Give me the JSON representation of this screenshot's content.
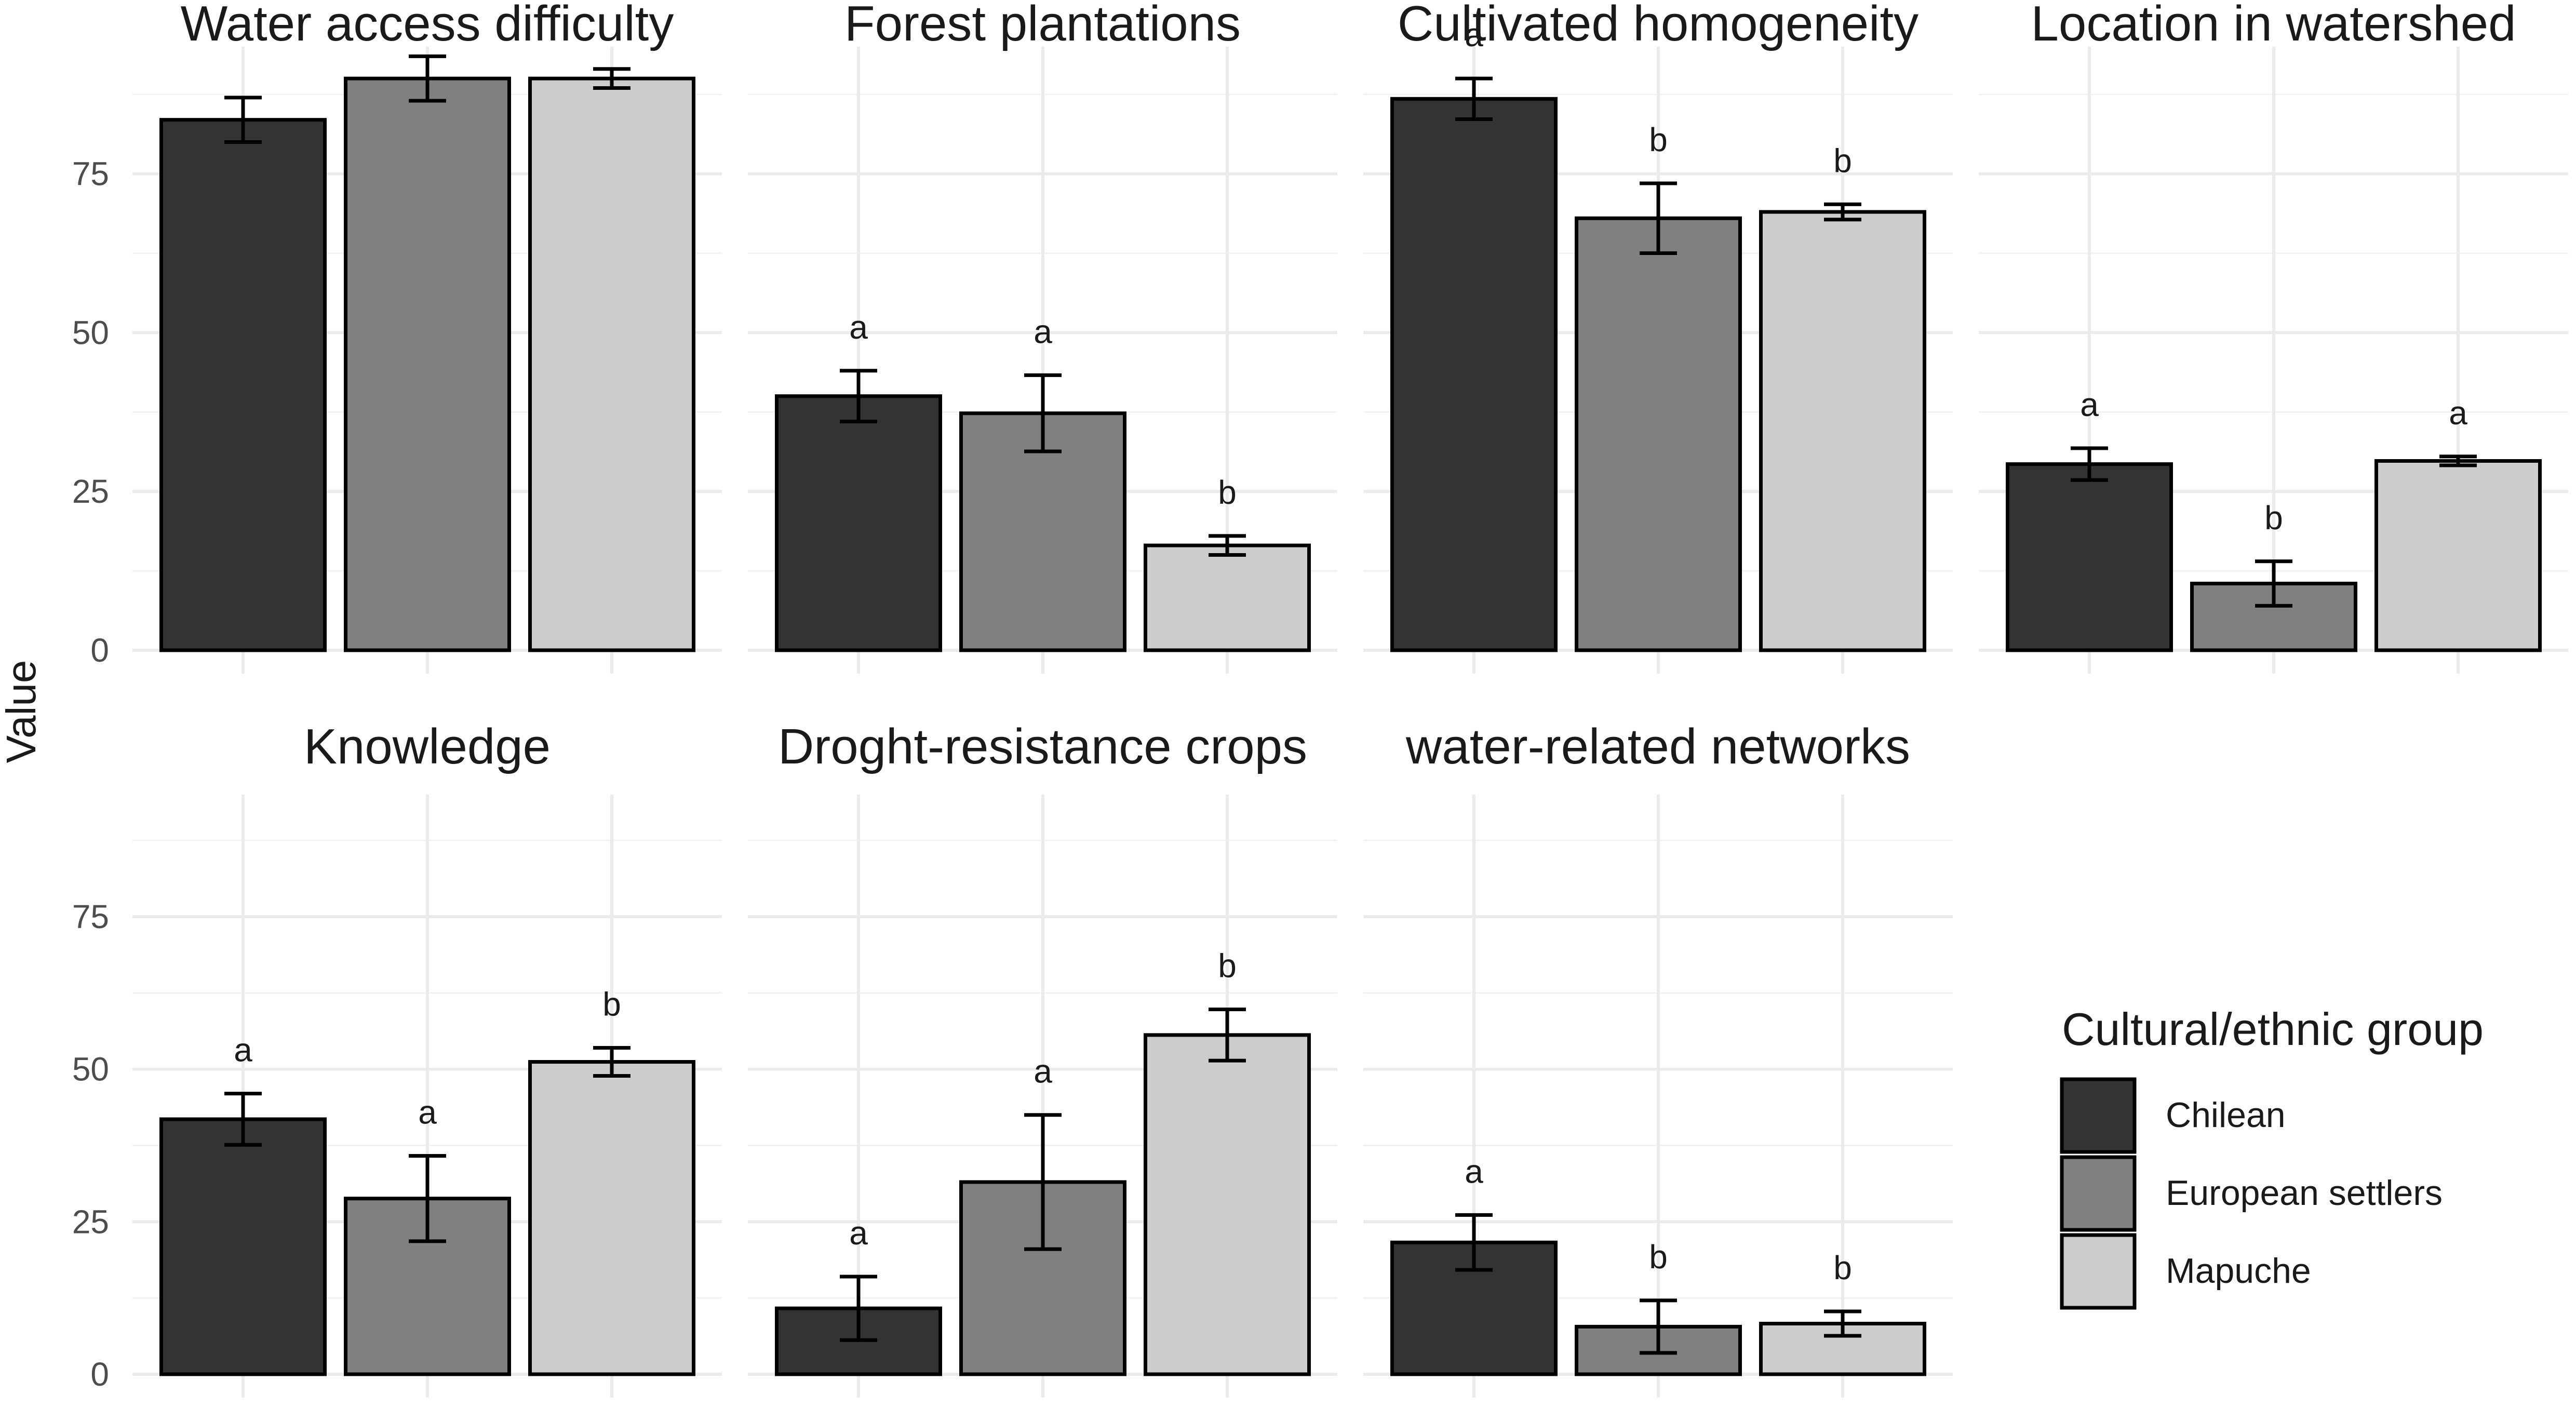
{
  "chart_data": {
    "type": "bar",
    "ylabel": "Value",
    "xlabel": "",
    "ylim": [
      0,
      95
    ],
    "yticks": [
      0,
      25,
      50,
      75
    ],
    "legend": {
      "title": "Cultural/ethnic group",
      "placement": "right",
      "entries": [
        {
          "name": "Chilean",
          "color": "#333333"
        },
        {
          "name": "European settlers",
          "color": "#808080"
        },
        {
          "name": "Mapuche",
          "color": "#cccccc"
        }
      ]
    },
    "panels": [
      {
        "title": "Water access difficulty",
        "values": [
          83.5,
          90,
          90
        ],
        "errors": [
          3.5,
          3.5,
          1.5
        ],
        "letters": [
          "",
          "",
          ""
        ]
      },
      {
        "title": "Forest plantations",
        "values": [
          40,
          37.3,
          16.5
        ],
        "errors": [
          4,
          6,
          1.5
        ],
        "letters": [
          "a",
          "a",
          "b"
        ]
      },
      {
        "title": "Cultivated homogeneity",
        "values": [
          86.8,
          68,
          69
        ],
        "errors": [
          3.2,
          5.5,
          1.2
        ],
        "letters": [
          "a",
          "b",
          "b"
        ]
      },
      {
        "title": "Location in watershed",
        "values": [
          29.3,
          10.5,
          29.8
        ],
        "errors": [
          2.5,
          3.5,
          0.7
        ],
        "letters": [
          "a",
          "b",
          "a"
        ]
      },
      {
        "title": "Knowledge",
        "values": [
          41.8,
          28.8,
          51.2
        ],
        "errors": [
          4.2,
          7,
          2.3
        ],
        "letters": [
          "a",
          "a",
          "b"
        ]
      },
      {
        "title": "Droght-resistance crops",
        "values": [
          10.8,
          31.5,
          55.6
        ],
        "errors": [
          5.2,
          11,
          4.2
        ],
        "letters": [
          "a",
          "a",
          "b"
        ]
      },
      {
        "title": "water-related networks",
        "values": [
          21.6,
          7.8,
          8.3
        ],
        "errors": [
          4.5,
          4.3,
          2
        ],
        " letters": [
          "a",
          "b",
          "b"
        ],
        "letters": [
          "a",
          "b",
          "b"
        ]
      }
    ]
  }
}
